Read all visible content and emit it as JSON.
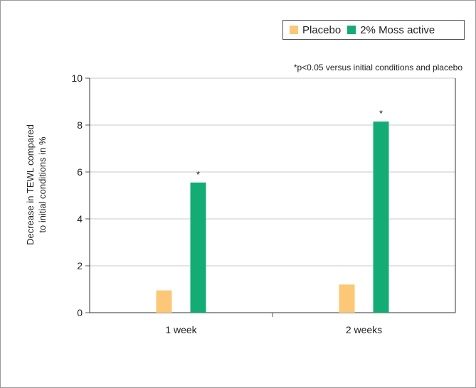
{
  "chart_data": {
    "type": "bar",
    "title": "",
    "xlabel": "",
    "ylabel_lines": [
      "Decrease in TEWL compared",
      "to initial conditions in %"
    ],
    "ylim": [
      0,
      10
    ],
    "yticks": [
      "0",
      "2",
      "4",
      "6",
      "8",
      "10"
    ],
    "grid": true,
    "legend_position": "top-right",
    "categories": [
      "1 week",
      "2 weeks"
    ],
    "series": [
      {
        "name": "Placebo",
        "color": "#fcc777",
        "values": [
          0.95,
          1.2
        ]
      },
      {
        "name": "2% Moss active",
        "color": "#13ac75",
        "values": [
          5.55,
          8.15
        ]
      }
    ],
    "annotations": [
      {
        "series": 1,
        "category": 0,
        "text": "*"
      },
      {
        "series": 1,
        "category": 1,
        "text": "*"
      }
    ],
    "footnote": "*p<0.05 versus initial conditions and placebo"
  }
}
